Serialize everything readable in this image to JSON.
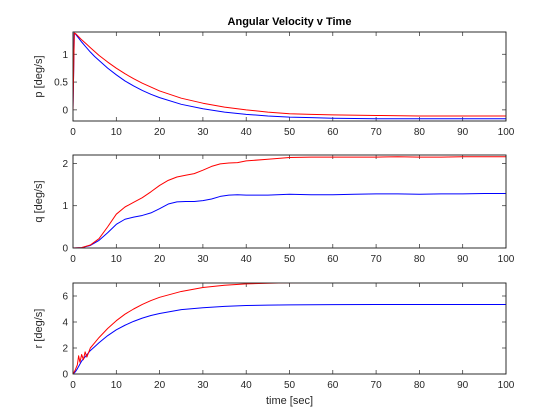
{
  "figure": {
    "background": "#ffffff"
  },
  "chart_data": [
    {
      "type": "line",
      "id": "p",
      "title": "Angular Velocity v Time",
      "xlabel": "",
      "ylabel": "p [deg/s]",
      "xlim": [
        0,
        100
      ],
      "ylim": [
        -0.2,
        1.4
      ],
      "xticks": [
        0,
        10,
        20,
        30,
        40,
        50,
        60,
        70,
        80,
        90,
        100
      ],
      "yticks": [
        0,
        0.5,
        1
      ],
      "yticklabels": [
        "0",
        "0.5",
        "1"
      ],
      "grid": false,
      "series": [
        {
          "color": "#0000ff",
          "x": [
            0,
            0.3,
            0.6,
            1,
            1.5,
            2,
            3,
            4,
            5,
            6,
            8,
            10,
            12,
            14,
            16,
            18,
            20,
            25,
            30,
            35,
            40,
            45,
            50,
            55,
            60,
            70,
            80,
            90,
            100
          ],
          "y": [
            0,
            1.38,
            1.36,
            1.32,
            1.27,
            1.22,
            1.13,
            1.04,
            0.96,
            0.89,
            0.75,
            0.63,
            0.52,
            0.43,
            0.35,
            0.28,
            0.22,
            0.1,
            0.02,
            -0.04,
            -0.08,
            -0.11,
            -0.13,
            -0.14,
            -0.15,
            -0.16,
            -0.16,
            -0.16,
            -0.16
          ]
        },
        {
          "color": "#ff0000",
          "x": [
            0,
            0.3,
            0.6,
            1,
            1.5,
            2,
            3,
            4,
            5,
            6,
            8,
            10,
            12,
            14,
            16,
            18,
            20,
            25,
            30,
            35,
            40,
            45,
            50,
            55,
            60,
            70,
            80,
            90,
            100
          ],
          "y": [
            0,
            1.38,
            1.37,
            1.34,
            1.3,
            1.26,
            1.19,
            1.12,
            1.05,
            0.98,
            0.86,
            0.75,
            0.65,
            0.56,
            0.48,
            0.41,
            0.34,
            0.21,
            0.12,
            0.05,
            0,
            -0.04,
            -0.07,
            -0.08,
            -0.09,
            -0.1,
            -0.11,
            -0.11,
            -0.11
          ]
        }
      ]
    },
    {
      "type": "line",
      "id": "q",
      "title": "",
      "xlabel": "",
      "ylabel": "q [deg/s]",
      "xlim": [
        0,
        100
      ],
      "ylim": [
        0,
        2.2
      ],
      "xticks": [
        0,
        10,
        20,
        30,
        40,
        50,
        60,
        70,
        80,
        90,
        100
      ],
      "yticks": [
        0,
        1,
        2
      ],
      "yticklabels": [
        "0",
        "1",
        "2"
      ],
      "grid": false,
      "series": [
        {
          "color": "#0000ff",
          "x": [
            0,
            2,
            4,
            6,
            8,
            10,
            12,
            14,
            16,
            18,
            20,
            22,
            24,
            26,
            28,
            30,
            32,
            34,
            36,
            38,
            40,
            45,
            50,
            55,
            60,
            65,
            70,
            75,
            80,
            85,
            90,
            95,
            100
          ],
          "y": [
            0,
            0.01,
            0.06,
            0.18,
            0.36,
            0.56,
            0.68,
            0.73,
            0.77,
            0.83,
            0.93,
            1.04,
            1.09,
            1.1,
            1.1,
            1.12,
            1.16,
            1.22,
            1.25,
            1.26,
            1.25,
            1.25,
            1.27,
            1.26,
            1.26,
            1.27,
            1.28,
            1.28,
            1.27,
            1.28,
            1.28,
            1.29,
            1.29
          ]
        },
        {
          "color": "#ff0000",
          "x": [
            0,
            2,
            4,
            6,
            8,
            10,
            12,
            14,
            16,
            18,
            20,
            22,
            24,
            26,
            28,
            30,
            32,
            34,
            36,
            38,
            40,
            45,
            50,
            55,
            60,
            65,
            70,
            75,
            80,
            85,
            90,
            95,
            100
          ],
          "y": [
            0,
            0.01,
            0.07,
            0.22,
            0.5,
            0.8,
            0.97,
            1.08,
            1.19,
            1.33,
            1.48,
            1.6,
            1.68,
            1.72,
            1.76,
            1.84,
            1.93,
            1.99,
            2.01,
            2.02,
            2.06,
            2.1,
            2.14,
            2.15,
            2.15,
            2.15,
            2.15,
            2.16,
            2.15,
            2.15,
            2.16,
            2.16,
            2.16
          ]
        }
      ]
    },
    {
      "type": "line",
      "id": "r",
      "title": "",
      "xlabel": "time [sec]",
      "ylabel": "r [deg/s]",
      "xlim": [
        0,
        100
      ],
      "ylim": [
        0,
        7
      ],
      "xticks": [
        0,
        10,
        20,
        30,
        40,
        50,
        60,
        70,
        80,
        90,
        100
      ],
      "yticks": [
        0,
        2,
        4,
        6
      ],
      "yticklabels": [
        "0",
        "2",
        "4",
        "6"
      ],
      "grid": false,
      "series": [
        {
          "color": "#0000ff",
          "x": [
            0,
            0.5,
            1,
            1.5,
            2,
            3,
            4,
            5,
            6,
            8,
            10,
            12,
            14,
            16,
            18,
            20,
            25,
            30,
            35,
            40,
            45,
            50,
            55,
            60,
            70,
            80,
            90,
            100
          ],
          "y": [
            0,
            0.15,
            0.4,
            0.7,
            1,
            1.4,
            1.8,
            2.1,
            2.4,
            2.95,
            3.4,
            3.75,
            4.05,
            4.3,
            4.5,
            4.65,
            4.95,
            5.1,
            5.2,
            5.27,
            5.3,
            5.32,
            5.33,
            5.34,
            5.35,
            5.35,
            5.35,
            5.35
          ]
        },
        {
          "color": "#ff0000",
          "x": [
            0,
            0.5,
            1,
            1.3,
            1.6,
            2,
            2.4,
            2.8,
            3.2,
            4,
            5,
            6,
            8,
            10,
            12,
            14,
            16,
            18,
            20,
            25,
            30,
            35,
            40,
            45,
            50,
            55,
            60,
            70,
            80,
            90,
            100
          ],
          "y": [
            0,
            0.3,
            0.7,
            1.4,
            0.9,
            1.5,
            1.1,
            1.7,
            1.3,
            2,
            2.4,
            2.8,
            3.5,
            4.1,
            4.6,
            5,
            5.35,
            5.65,
            5.9,
            6.35,
            6.65,
            6.83,
            6.93,
            6.98,
            7.02,
            7.04,
            7.05,
            7.06,
            7.06,
            7.06,
            7.06
          ]
        }
      ]
    }
  ]
}
